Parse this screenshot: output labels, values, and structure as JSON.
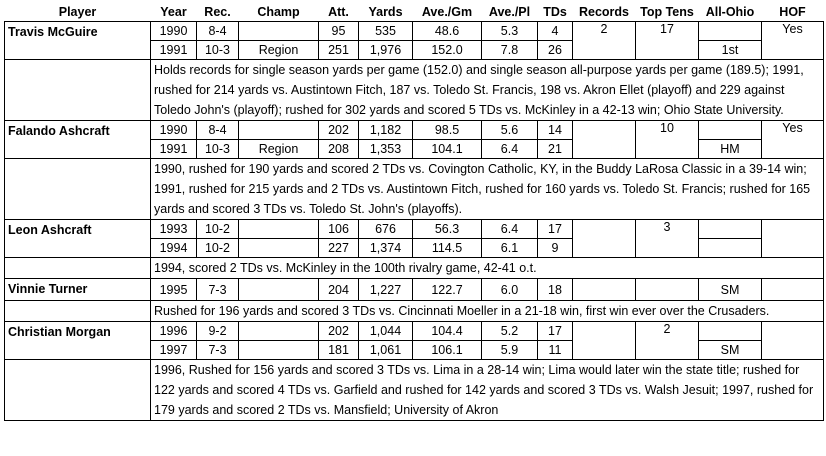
{
  "headers": [
    "Player",
    "Year",
    "Rec.",
    "Champ",
    "Att.",
    "Yards",
    "Ave./Gm",
    "Ave./Pl",
    "TDs",
    "Records",
    "Top Tens",
    "All-Ohio",
    "HOF"
  ],
  "players": [
    {
      "name": "Travis McGuire",
      "rows": [
        {
          "year": "1990",
          "rec": "8-4",
          "champ": "",
          "att": "95",
          "yards": "535",
          "avg_gm": "48.6",
          "avg_pl": "5.3",
          "tds": "4"
        },
        {
          "year": "1991",
          "rec": "10-3",
          "champ": "Region",
          "att": "251",
          "yards": "1,976",
          "avg_gm": "152.0",
          "avg_pl": "7.8",
          "tds": "26"
        }
      ],
      "records": "2",
      "top_tens": "17",
      "all_ohio": [
        "",
        "1st"
      ],
      "hof": "Yes",
      "notes": "Holds records for single season yards per game (152.0) and single season all-purpose yards per game (189.5); 1991, rushed for 214 yards vs. Austintown Fitch, 187 vs. Toledo St. Francis, 198 vs. Akron Ellet (playoff) and 229 against Toledo John's (playoff); rushed for 302 yards and scored 5 TDs vs. McKinley in a 42-13 win; Ohio State University."
    },
    {
      "name": "Falando Ashcraft",
      "rows": [
        {
          "year": "1990",
          "rec": "8-4",
          "champ": "",
          "att": "202",
          "yards": "1,182",
          "avg_gm": "98.5",
          "avg_pl": "5.6",
          "tds": "14"
        },
        {
          "year": "1991",
          "rec": "10-3",
          "champ": "Region",
          "att": "208",
          "yards": "1,353",
          "avg_gm": "104.1",
          "avg_pl": "6.4",
          "tds": "21"
        }
      ],
      "records": "",
      "top_tens": "10",
      "all_ohio": [
        "",
        "HM"
      ],
      "hof": "Yes",
      "notes": "1990, rushed for 190 yards and scored 2 TDs vs. Covington Catholic, KY, in the Buddy LaRosa Classic in a 39-14 win; 1991, rushed for 215 yards and 2 TDs vs. Austintown Fitch, rushed for 160 yards vs. Toledo St. Francis; rushed for 165 yards and scored 3 TDs vs. Toledo St. John's (playoffs)."
    },
    {
      "name": "Leon Ashcraft",
      "rows": [
        {
          "year": "1993",
          "rec": "10-2",
          "champ": "",
          "att": "106",
          "yards": "676",
          "avg_gm": "56.3",
          "avg_pl": "6.4",
          "tds": "17"
        },
        {
          "year": "1994",
          "rec": "10-2",
          "champ": "",
          "att": "227",
          "yards": "1,374",
          "avg_gm": "114.5",
          "avg_pl": "6.1",
          "tds": "9"
        }
      ],
      "records": "",
      "top_tens": "3",
      "all_ohio": [
        "",
        ""
      ],
      "hof": "",
      "notes": "1994, scored 2 TDs vs. McKinley in the 100th rivalry game, 42-41 o.t."
    },
    {
      "name": "Vinnie Turner",
      "rows": [
        {
          "year": "1995",
          "rec": "7-3",
          "champ": "",
          "att": "204",
          "yards": "1,227",
          "avg_gm": "122.7",
          "avg_pl": "6.0",
          "tds": "18"
        }
      ],
      "records": "",
      "top_tens": "",
      "all_ohio": [
        "SM"
      ],
      "hof": "",
      "notes": "Rushed for 196 yards and scored 3 TDs vs. Cincinnati Moeller in a 21-18  win, first win ever over the Crusaders."
    },
    {
      "name": "Christian Morgan",
      "rows": [
        {
          "year": "1996",
          "rec": "9-2",
          "champ": "",
          "att": "202",
          "yards": "1,044",
          "avg_gm": "104.4",
          "avg_pl": "5.2",
          "tds": "17"
        },
        {
          "year": "1997",
          "rec": "7-3",
          "champ": "",
          "att": "181",
          "yards": "1,061",
          "avg_gm": "106.1",
          "avg_pl": "5.9",
          "tds": "11"
        }
      ],
      "records": "",
      "top_tens": "2",
      "all_ohio": [
        "",
        "SM"
      ],
      "hof": "",
      "notes": "1996, Rushed for 156 yards and scored 3 TDs vs. Lima in a 28-14 win; Lima would later win the state title; rushed for 122 yards and scored 4 TDs vs. Garfield and rushed for 142 yards and scored 3 TDs vs. Walsh Jesuit; 1997, rushed for 179 yards and scored 2 TDs vs. Mansfield; University of Akron"
    }
  ]
}
